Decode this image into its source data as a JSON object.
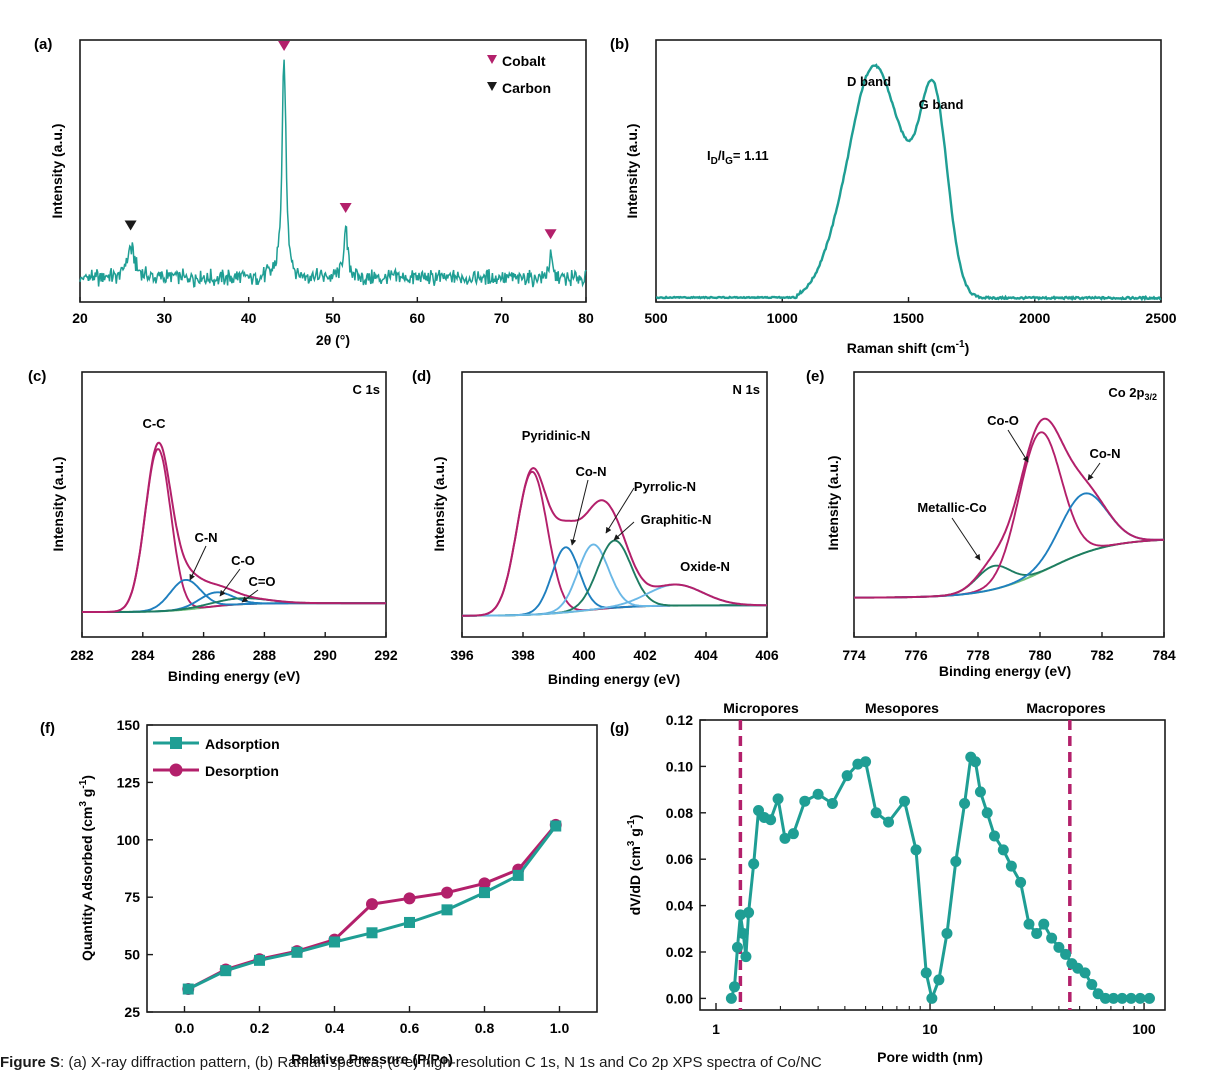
{
  "caption": {
    "label": "Figure S",
    "text": "(a) X-ray diffraction pattern, (b) Raman spectra, (c-e) high-resolution C 1s, N 1s and Co 2p XPS spectra of Co/NC"
  },
  "colors": {
    "teal": "#1f9e94",
    "magenta": "#b3206b",
    "black": "#1a1a1a",
    "xps_raw": "#c980a3",
    "xps_blue": "#1f7fbf",
    "xps_lightblue": "#6bb8e6",
    "xps_darkgreen": "#1e7c62",
    "xps_green": "#72c07a"
  },
  "chart_data": [
    {
      "panel": "(a)",
      "type": "line",
      "xlabel": "2θ (°)",
      "ylabel": "Intensity (a.u.)",
      "xlim": [
        20,
        80
      ],
      "xticks": [
        20,
        30,
        40,
        50,
        60,
        70,
        80
      ],
      "legend": [
        {
          "name": "Cobalt",
          "marker": "triangle-down",
          "color": "#b3206b"
        },
        {
          "name": "Carbon",
          "marker": "triangle-down",
          "color": "#1a1a1a"
        }
      ],
      "legend_position": "top-right",
      "peaks": [
        {
          "x": 26.0,
          "height": 0.14,
          "label": "Carbon"
        },
        {
          "x": 44.2,
          "height": 1.0,
          "label": "Cobalt"
        },
        {
          "x": 51.5,
          "height": 0.22,
          "label": "Cobalt"
        },
        {
          "x": 75.8,
          "height": 0.1,
          "label": "Cobalt"
        }
      ]
    },
    {
      "panel": "(b)",
      "type": "line",
      "xlabel": "Raman shift (cm",
      "xlabel_sup": "-1",
      "xlabel_tail": ")",
      "ylabel": "Intensity (a.u.)",
      "xlim": [
        500,
        2500
      ],
      "xticks": [
        500,
        1000,
        1500,
        2000,
        2500
      ],
      "annotations": [
        "D band",
        "G band"
      ],
      "ratio_label": {
        "I": "I",
        "D": "D",
        "slash": "/I",
        "G": "G",
        "value": "= 1.11"
      },
      "peaks": [
        {
          "x": 1360,
          "height": 0.86
        },
        {
          "x": 1600,
          "height": 0.77
        }
      ]
    },
    {
      "panel": "(c)",
      "type": "line",
      "title": "C 1s",
      "xlabel": "Binding energy (eV)",
      "ylabel": "Intensity (a.u.)",
      "xlim": [
        282,
        292
      ],
      "xticks": [
        282,
        284,
        286,
        288,
        290,
        292
      ],
      "components": [
        {
          "name": "C-C",
          "center": 284.5,
          "height": 0.82
        },
        {
          "name": "C-N",
          "center": 285.4,
          "height": 0.15
        },
        {
          "name": "C-O",
          "center": 286.4,
          "height": 0.07
        },
        {
          "name": "C=O",
          "center": 287.2,
          "height": 0.03
        }
      ]
    },
    {
      "panel": "(d)",
      "type": "line",
      "title": "N 1s",
      "xlabel": "Binding energy (eV)",
      "ylabel": "Intensity (a.u.)",
      "xlim": [
        396,
        406
      ],
      "xticks": [
        396,
        398,
        400,
        402,
        404,
        406
      ],
      "components": [
        {
          "name": "Pyridinic-N",
          "center": 398.3,
          "height": 0.68
        },
        {
          "name": "Co-N",
          "center": 399.4,
          "height": 0.31
        },
        {
          "name": "Pyrrolic-N",
          "center": 400.3,
          "height": 0.31
        },
        {
          "name": "Graphitic-N",
          "center": 401.0,
          "height": 0.32
        },
        {
          "name": "Oxide-N",
          "center": 403.0,
          "height": 0.1
        }
      ]
    },
    {
      "panel": "(e)",
      "type": "line",
      "title": "Co 2p",
      "title_sub": "3/2",
      "xlabel": "Binding energy (eV)",
      "ylabel": "Intensity (a.u.)",
      "xlim": [
        774,
        784
      ],
      "xticks": [
        774,
        776,
        778,
        780,
        782,
        784
      ],
      "components": [
        {
          "name": "Metallic-Co",
          "center": 778.5,
          "height": 0.11
        },
        {
          "name": "Co-O",
          "center": 780.0,
          "height": 0.66
        },
        {
          "name": "Co-N",
          "center": 781.4,
          "height": 0.28
        }
      ]
    },
    {
      "panel": "(f)",
      "type": "line",
      "xlabel": "Relative Pressure (P/Po)",
      "ylabel": "Quantity Adsorbed (cm",
      "ylabel_sup": "3",
      "ylabel_mid": " g",
      "ylabel_sup2": "-1",
      "ylabel_tail": ")",
      "xlim": [
        -0.1,
        1.1
      ],
      "ylim": [
        25,
        150
      ],
      "xticks": [
        "0.0",
        "0.2",
        "0.4",
        "0.6",
        "0.8",
        "1.0"
      ],
      "yticks": [
        "25",
        "50",
        "75",
        "100",
        "125",
        "150"
      ],
      "legend_position": "top-left",
      "series": [
        {
          "name": "Adsorption",
          "marker": "square",
          "color": "#1f9e94",
          "x": [
            0.01,
            0.11,
            0.2,
            0.3,
            0.4,
            0.5,
            0.6,
            0.7,
            0.8,
            0.89,
            0.99
          ],
          "y": [
            35,
            43,
            47.5,
            51,
            55.5,
            59.5,
            64,
            69.5,
            77,
            84.5,
            106
          ]
        },
        {
          "name": "Desorption",
          "marker": "circle",
          "color": "#b3206b",
          "x": [
            0.01,
            0.11,
            0.2,
            0.3,
            0.4,
            0.5,
            0.6,
            0.7,
            0.8,
            0.89,
            0.99
          ],
          "y": [
            35,
            43.5,
            48,
            51.5,
            56.5,
            72,
            74.5,
            77,
            81,
            87,
            106.5
          ]
        }
      ]
    },
    {
      "panel": "(g)",
      "type": "line",
      "xlabel": "Pore width (nm)",
      "ylabel": "dV/dD (cm",
      "ylabel_sup": "3",
      "ylabel_mid": " g",
      "ylabel_sup2": "-1",
      "ylabel_tail": ")",
      "xscale": "log",
      "xlim": [
        1,
        120
      ],
      "ylim": [
        -0.005,
        0.12
      ],
      "xticks": [
        "1",
        "10",
        "100"
      ],
      "yticks": [
        "0.00",
        "0.02",
        "0.04",
        "0.06",
        "0.08",
        "0.10",
        "0.12"
      ],
      "regions": [
        "Micropores",
        "Mesopores",
        "Macropores"
      ],
      "boundaries": [
        1.3,
        45
      ],
      "series": [
        {
          "name": "",
          "marker": "circle",
          "color": "#1f9e94",
          "x": [
            1.18,
            1.22,
            1.26,
            1.3,
            1.34,
            1.38,
            1.42,
            1.5,
            1.58,
            1.68,
            1.8,
            1.95,
            2.1,
            2.3,
            2.6,
            3.0,
            3.5,
            4.1,
            4.6,
            5.0,
            5.6,
            6.4,
            7.6,
            8.6,
            9.6,
            10.2,
            11.0,
            12.0,
            13.2,
            14.5,
            15.5,
            16.3,
            17.2,
            18.5,
            20,
            22,
            24,
            26.5,
            29,
            31.5,
            34,
            37,
            40,
            43,
            46,
            49,
            53,
            57,
            61,
            66,
            72,
            79,
            87,
            96,
            106
          ],
          "y": [
            0.0,
            0.005,
            0.022,
            0.036,
            0.028,
            0.018,
            0.037,
            0.058,
            0.081,
            0.078,
            0.077,
            0.086,
            0.069,
            0.071,
            0.085,
            0.088,
            0.084,
            0.096,
            0.101,
            0.102,
            0.08,
            0.076,
            0.085,
            0.064,
            0.011,
            0.0,
            0.008,
            0.028,
            0.059,
            0.084,
            0.104,
            0.102,
            0.089,
            0.08,
            0.07,
            0.064,
            0.057,
            0.05,
            0.032,
            0.028,
            0.032,
            0.026,
            0.022,
            0.019,
            0.015,
            0.013,
            0.011,
            0.006,
            0.002,
            0.0,
            0.0,
            0.0,
            0.0,
            0.0,
            0.0
          ]
        }
      ]
    }
  ]
}
